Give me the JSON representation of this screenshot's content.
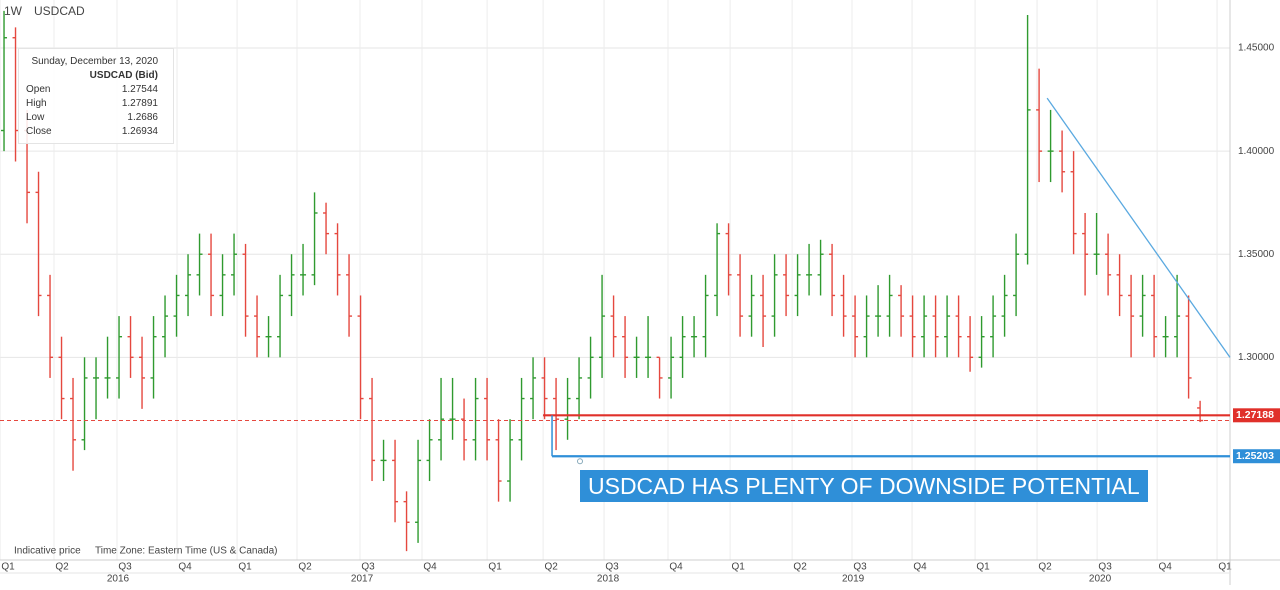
{
  "chart_data": {
    "type": "ohlc",
    "header": {
      "interval": "1W",
      "symbol": "USDCAD"
    },
    "tooltip": {
      "date": "Sunday, December 13, 2020",
      "title": "USDCAD (Bid)",
      "labels": [
        "Open",
        "High",
        "Low",
        "Close"
      ]
    },
    "footer": {
      "note": "Indicative price",
      "timezone": "Time Zone: Eastern Time (US & Canada)"
    },
    "annotation": "USDCAD HAS PLENTY OF DOWNSIDE POTENTIAL",
    "up_color": "#2f9a2f",
    "down_color": "#e5483f",
    "open": [
      1.41,
      1.455,
      1.41,
      1.38,
      1.33,
      1.3,
      1.28,
      1.26,
      1.29,
      1.29,
      1.29,
      1.31,
      1.3,
      1.29,
      1.31,
      1.32,
      1.33,
      1.34,
      1.35,
      1.33,
      1.34,
      1.35,
      1.32,
      1.31,
      1.31,
      1.33,
      1.34,
      1.34,
      1.37,
      1.36,
      1.34,
      1.32,
      1.28,
      1.25,
      1.25,
      1.23,
      1.22,
      1.25,
      1.26,
      1.27,
      1.27,
      1.26,
      1.28,
      1.26,
      1.24,
      1.26,
      1.28,
      1.29,
      1.28,
      1.27,
      1.28,
      1.29,
      1.3,
      1.32,
      1.31,
      1.3,
      1.3,
      1.3,
      1.29,
      1.3,
      1.31,
      1.31,
      1.33,
      1.36,
      1.34,
      1.32,
      1.33,
      1.32,
      1.34,
      1.33,
      1.34,
      1.34,
      1.35,
      1.33,
      1.32,
      1.31,
      1.32,
      1.32,
      1.33,
      1.32,
      1.31,
      1.32,
      1.31,
      1.32,
      1.31,
      1.3,
      1.31,
      1.32,
      1.33,
      1.35,
      1.42,
      1.4,
      1.4,
      1.39,
      1.36,
      1.35,
      1.35,
      1.34,
      1.33,
      1.32,
      1.33,
      1.31,
      1.31,
      1.32,
      1.27544
    ],
    "high": [
      1.468,
      1.46,
      1.42,
      1.39,
      1.34,
      1.31,
      1.29,
      1.3,
      1.3,
      1.31,
      1.32,
      1.32,
      1.31,
      1.32,
      1.33,
      1.34,
      1.35,
      1.36,
      1.36,
      1.35,
      1.36,
      1.355,
      1.33,
      1.32,
      1.34,
      1.35,
      1.355,
      1.38,
      1.375,
      1.365,
      1.35,
      1.33,
      1.29,
      1.26,
      1.26,
      1.235,
      1.26,
      1.27,
      1.29,
      1.29,
      1.28,
      1.29,
      1.29,
      1.27,
      1.27,
      1.29,
      1.3,
      1.3,
      1.29,
      1.29,
      1.3,
      1.31,
      1.34,
      1.33,
      1.32,
      1.31,
      1.32,
      1.3,
      1.31,
      1.32,
      1.32,
      1.34,
      1.365,
      1.365,
      1.35,
      1.34,
      1.34,
      1.35,
      1.35,
      1.35,
      1.355,
      1.357,
      1.355,
      1.34,
      1.33,
      1.33,
      1.335,
      1.34,
      1.335,
      1.33,
      1.33,
      1.33,
      1.33,
      1.33,
      1.32,
      1.32,
      1.33,
      1.34,
      1.36,
      1.466,
      1.44,
      1.42,
      1.41,
      1.4,
      1.37,
      1.37,
      1.36,
      1.35,
      1.34,
      1.34,
      1.34,
      1.32,
      1.34,
      1.33,
      1.27891
    ],
    "low": [
      1.4,
      1.395,
      1.365,
      1.32,
      1.29,
      1.27,
      1.245,
      1.255,
      1.27,
      1.28,
      1.28,
      1.29,
      1.275,
      1.28,
      1.3,
      1.31,
      1.32,
      1.33,
      1.32,
      1.32,
      1.33,
      1.31,
      1.3,
      1.3,
      1.3,
      1.32,
      1.33,
      1.335,
      1.35,
      1.33,
      1.31,
      1.27,
      1.24,
      1.24,
      1.22,
      1.206,
      1.21,
      1.24,
      1.25,
      1.26,
      1.25,
      1.25,
      1.25,
      1.23,
      1.23,
      1.25,
      1.27,
      1.27,
      1.255,
      1.26,
      1.27,
      1.28,
      1.29,
      1.3,
      1.29,
      1.29,
      1.29,
      1.28,
      1.28,
      1.29,
      1.3,
      1.3,
      1.32,
      1.33,
      1.31,
      1.31,
      1.305,
      1.31,
      1.32,
      1.32,
      1.33,
      1.33,
      1.32,
      1.31,
      1.3,
      1.3,
      1.31,
      1.31,
      1.31,
      1.3,
      1.3,
      1.3,
      1.3,
      1.3,
      1.293,
      1.295,
      1.3,
      1.31,
      1.32,
      1.345,
      1.385,
      1.385,
      1.38,
      1.35,
      1.33,
      1.34,
      1.33,
      1.32,
      1.3,
      1.31,
      1.3,
      1.3,
      1.3,
      1.28,
      1.2686
    ],
    "close": [
      1.455,
      1.41,
      1.38,
      1.33,
      1.3,
      1.28,
      1.26,
      1.29,
      1.29,
      1.29,
      1.31,
      1.3,
      1.29,
      1.31,
      1.32,
      1.33,
      1.34,
      1.35,
      1.33,
      1.34,
      1.35,
      1.32,
      1.31,
      1.31,
      1.33,
      1.34,
      1.34,
      1.37,
      1.36,
      1.34,
      1.32,
      1.28,
      1.25,
      1.25,
      1.23,
      1.22,
      1.25,
      1.26,
      1.27,
      1.27,
      1.26,
      1.28,
      1.26,
      1.24,
      1.26,
      1.28,
      1.29,
      1.28,
      1.27,
      1.28,
      1.29,
      1.3,
      1.32,
      1.31,
      1.3,
      1.3,
      1.3,
      1.29,
      1.3,
      1.31,
      1.31,
      1.33,
      1.36,
      1.34,
      1.32,
      1.33,
      1.32,
      1.34,
      1.33,
      1.34,
      1.34,
      1.35,
      1.33,
      1.32,
      1.31,
      1.32,
      1.32,
      1.33,
      1.32,
      1.31,
      1.32,
      1.31,
      1.32,
      1.31,
      1.3,
      1.31,
      1.32,
      1.33,
      1.35,
      1.42,
      1.4,
      1.4,
      1.39,
      1.36,
      1.35,
      1.35,
      1.34,
      1.33,
      1.32,
      1.33,
      1.31,
      1.31,
      1.32,
      1.29,
      1.26934
    ],
    "xlim": [
      -0.35,
      106.6
    ],
    "xticks": [
      {
        "value": 0.35,
        "label": "Q1"
      },
      {
        "value": 5.04,
        "label": "Q2"
      },
      {
        "value": 10.52,
        "label": "Q3"
      },
      {
        "value": 15.74,
        "label": "Q4"
      },
      {
        "value": 20.96,
        "label": "Q1"
      },
      {
        "value": 26.17,
        "label": "Q2"
      },
      {
        "value": 31.65,
        "label": "Q3"
      },
      {
        "value": 37.04,
        "label": "Q4"
      },
      {
        "value": 42.7,
        "label": "Q1"
      },
      {
        "value": 47.57,
        "label": "Q2"
      },
      {
        "value": 52.87,
        "label": "Q3"
      },
      {
        "value": 58.43,
        "label": "Q4"
      },
      {
        "value": 63.83,
        "label": "Q1"
      },
      {
        "value": 69.22,
        "label": "Q2"
      },
      {
        "value": 74.43,
        "label": "Q3"
      },
      {
        "value": 79.65,
        "label": "Q4"
      },
      {
        "value": 85.13,
        "label": "Q1"
      },
      {
        "value": 90.52,
        "label": "Q2"
      },
      {
        "value": 95.74,
        "label": "Q3"
      },
      {
        "value": 100.96,
        "label": "Q4"
      },
      {
        "value": 106.17,
        "label": "Q1"
      }
    ],
    "years": [
      {
        "value": 9.91,
        "label": "2016"
      },
      {
        "value": 31.13,
        "label": "2017"
      },
      {
        "value": 52.52,
        "label": "2018"
      },
      {
        "value": 73.83,
        "label": "2019"
      },
      {
        "value": 95.3,
        "label": "2020"
      }
    ],
    "ylim": [
      1.2017,
      1.4733
    ],
    "yticks": [
      {
        "value": 1.3,
        "label": "1.30000"
      },
      {
        "value": 1.35,
        "label": "1.35000"
      },
      {
        "value": 1.4,
        "label": "1.40000"
      },
      {
        "value": 1.45,
        "label": "1.45000"
      }
    ],
    "grid": true,
    "levels": [
      {
        "value": 1.27188,
        "label": "1.27188",
        "color": "#e0302a",
        "start": 46.87
      },
      {
        "value": 1.25203,
        "label": "1.25203",
        "color": "#2f8fd8",
        "start": 47.65
      }
    ],
    "trendline": {
      "color": "#5aa9e0",
      "x": [
        90.7,
        106.6
      ],
      "y": [
        1.4257,
        1.3
      ]
    }
  }
}
